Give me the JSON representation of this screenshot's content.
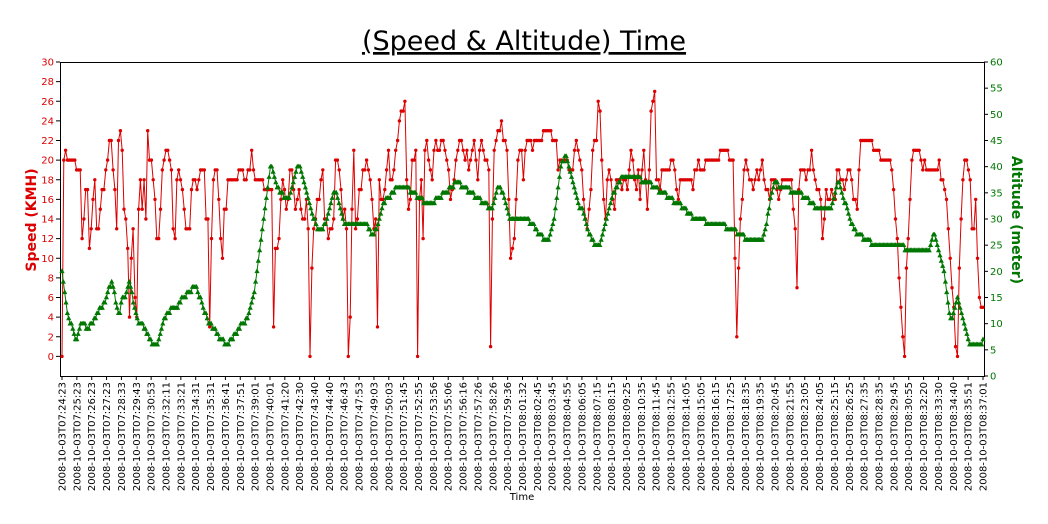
{
  "chart_data": {
    "type": "line",
    "title": "(Speed & Altitude) Time",
    "xlabel": "Time",
    "ylabel_left": "Speed (KMH)",
    "ylabel_right": "Altitude (meter)",
    "ylim_left": [
      -2,
      30
    ],
    "ylim_right": [
      0,
      60
    ],
    "yticks_left": [
      0,
      2,
      4,
      6,
      8,
      10,
      12,
      14,
      16,
      18,
      20,
      22,
      24,
      26,
      28,
      30
    ],
    "yticks_right": [
      0,
      5,
      10,
      15,
      20,
      25,
      30,
      35,
      40,
      45,
      50,
      55,
      60
    ],
    "grid": false,
    "legend": "none",
    "colors": {
      "speed": "#dd0000",
      "altitude": "#007700",
      "frame": "#000000"
    },
    "x_tick_labels": [
      "2008-10-03T07:24:23",
      "2008-10-03T07:25:23",
      "2008-10-03T07:26:23",
      "2008-10-03T07:27:23",
      "2008-10-03T07:28:33",
      "2008-10-03T07:29:43",
      "2008-10-03T07:30:53",
      "2008-10-03T07:32:11",
      "2008-10-03T07:33:21",
      "2008-10-03T07:34:31",
      "2008-10-03T07:35:31",
      "2008-10-03T07:36:41",
      "2008-10-03T07:37:51",
      "2008-10-03T07:39:01",
      "2008-10-03T07:40:01",
      "2008-10-03T07:41:20",
      "2008-10-03T07:42:30",
      "2008-10-03T07:43:40",
      "2008-10-03T07:44:40",
      "2008-10-03T07:46:43",
      "2008-10-03T07:47:53",
      "2008-10-03T07:49:03",
      "2008-10-03T07:50:03",
      "2008-10-03T07:51:45",
      "2008-10-03T07:52:55",
      "2008-10-03T07:53:56",
      "2008-10-03T07:55:06",
      "2008-10-03T07:56:16",
      "2008-10-03T07:57:26",
      "2008-10-03T07:58:26",
      "2008-10-03T07:59:36",
      "2008-10-03T08:01:32",
      "2008-10-03T08:02:45",
      "2008-10-03T08:03:45",
      "2008-10-03T08:04:55",
      "2008-10-03T08:06:05",
      "2008-10-03T08:07:15",
      "2008-10-03T08:08:15",
      "2008-10-03T08:09:25",
      "2008-10-03T08:10:35",
      "2008-10-03T08:11:45",
      "2008-10-03T08:12:55",
      "2008-10-03T08:14:05",
      "2008-10-03T08:15:05",
      "2008-10-03T08:16:15",
      "2008-10-03T08:17:25",
      "2008-10-03T08:18:35",
      "2008-10-03T08:19:35",
      "2008-10-03T08:20:45",
      "2008-10-03T08:21:55",
      "2008-10-03T08:23:05",
      "2008-10-03T08:24:05",
      "2008-10-03T08:25:15",
      "2008-10-03T08:26:25",
      "2008-10-03T08:27:35",
      "2008-10-03T08:28:35",
      "2008-10-03T08:29:45",
      "2008-10-03T08:30:55",
      "2008-10-03T08:32:20",
      "2008-10-03T08:33:30",
      "2008-10-03T08:34:40",
      "2008-10-03T08:35:51",
      "2008-10-03T08:37:01"
    ],
    "series": [
      {
        "axis": "left",
        "marker": "dot",
        "values": [
          0,
          20,
          21,
          20,
          20,
          20,
          20,
          20,
          19,
          19,
          19,
          12,
          14,
          17,
          17,
          11,
          13,
          16,
          18,
          13,
          13,
          15,
          17,
          17,
          19,
          20,
          22,
          22,
          19,
          17,
          13,
          22,
          23,
          21,
          15,
          14,
          11,
          4,
          10,
          13,
          6,
          4,
          15,
          18,
          15,
          18,
          14,
          23,
          20,
          20,
          18,
          16,
          12,
          12,
          15,
          19,
          20,
          21,
          21,
          20,
          19,
          13,
          12,
          18,
          19,
          18,
          17,
          15,
          13,
          13,
          13,
          17,
          18,
          18,
          17,
          18,
          19,
          19,
          19,
          14,
          14,
          3,
          12,
          18,
          19,
          19,
          16,
          12,
          10,
          15,
          15,
          18,
          18,
          18,
          18,
          18,
          18,
          19,
          19,
          19,
          18,
          18,
          19,
          19,
          21,
          19,
          18,
          18,
          18,
          18,
          18,
          17,
          17,
          17,
          17,
          17,
          3,
          11,
          11,
          12,
          16,
          18,
          17,
          15,
          16,
          19,
          19,
          17,
          15,
          16,
          17,
          15,
          14,
          14,
          16,
          13,
          0,
          9,
          13,
          14,
          16,
          16,
          18,
          19,
          14,
          14,
          12,
          13,
          13,
          14,
          20,
          20,
          19,
          17,
          14,
          15,
          13,
          0,
          4,
          15,
          21,
          13,
          14,
          17,
          17,
          19,
          19,
          20,
          19,
          18,
          16,
          13,
          14,
          3,
          18,
          16,
          16,
          17,
          19,
          21,
          18,
          18,
          19,
          21,
          22,
          24,
          25,
          25,
          26,
          18,
          15,
          16,
          20,
          20,
          21,
          0,
          16,
          18,
          12,
          21,
          22,
          20,
          19,
          18,
          21,
          22,
          21,
          21,
          22,
          22,
          21,
          20,
          19,
          16,
          17,
          18,
          20,
          21,
          22,
          22,
          21,
          20,
          21,
          19,
          20,
          21,
          22,
          20,
          18,
          21,
          22,
          21,
          20,
          20,
          19,
          1,
          14,
          21,
          22,
          23,
          23,
          24,
          22,
          22,
          21,
          16,
          10,
          11,
          12,
          16,
          20,
          21,
          21,
          18,
          21,
          22,
          22,
          22,
          21,
          22,
          22,
          22,
          22,
          22,
          23,
          23,
          23,
          23,
          23,
          22,
          22,
          22,
          19,
          20,
          20,
          20,
          20,
          20,
          19,
          19,
          19,
          21,
          22,
          21,
          20,
          19,
          16,
          14,
          13,
          15,
          17,
          21,
          22,
          22,
          26,
          25,
          20,
          16,
          14,
          18,
          19,
          18,
          16,
          15,
          18,
          18,
          18,
          17,
          18,
          18,
          17,
          19,
          21,
          20,
          18,
          17,
          19,
          16,
          19,
          21,
          18,
          15,
          19,
          25,
          26,
          27,
          18,
          18,
          17,
          19,
          19,
          19,
          19,
          19,
          20,
          20,
          19,
          17,
          16,
          18,
          18,
          18,
          18,
          18,
          18,
          18,
          17,
          19,
          19,
          20,
          19,
          19,
          19,
          20,
          20,
          20,
          20,
          20,
          20,
          20,
          20,
          21,
          21,
          21,
          21,
          21,
          20,
          20,
          20,
          10,
          2,
          9,
          14,
          16,
          19,
          20,
          19,
          18,
          18,
          17,
          18,
          19,
          18,
          19,
          20,
          18,
          17,
          17,
          16,
          18,
          18,
          18,
          17,
          16,
          17,
          18,
          18,
          18,
          18,
          18,
          18,
          15,
          13,
          7,
          17,
          19,
          19,
          19,
          18,
          19,
          19,
          21,
          19,
          18,
          17,
          17,
          16,
          12,
          14,
          17,
          16,
          16,
          17,
          16,
          16,
          19,
          19,
          18,
          18,
          17,
          18,
          19,
          19,
          18,
          16,
          16,
          15,
          19,
          22,
          22,
          22,
          22,
          22,
          22,
          22,
          21,
          21,
          21,
          21,
          20,
          20,
          20,
          20,
          20,
          20,
          19,
          17,
          14,
          12,
          8,
          5,
          2,
          0,
          9,
          12,
          16,
          20,
          21,
          21,
          21,
          21,
          20,
          19,
          20,
          19,
          19,
          19,
          19,
          19,
          19,
          19,
          20,
          18,
          18,
          17,
          16,
          13,
          10,
          7,
          5,
          1,
          0,
          9,
          14,
          18,
          20,
          20,
          19,
          18,
          13,
          13,
          16,
          10,
          6,
          5,
          5
        ]
      },
      {
        "axis": "right",
        "marker": "triangle",
        "values": [
          20,
          18,
          16,
          14,
          12,
          11,
          10,
          10,
          9,
          8,
          7,
          7,
          8,
          9,
          10,
          10,
          10,
          10,
          9,
          9,
          9,
          10,
          10,
          10,
          11,
          11,
          12,
          12,
          13,
          13,
          13,
          14,
          14,
          15,
          16,
          17,
          17,
          18,
          17,
          16,
          14,
          13,
          12,
          12,
          14,
          15,
          15,
          15,
          16,
          17,
          18,
          17,
          16,
          14,
          13,
          12,
          11,
          10,
          10,
          10,
          10,
          9,
          9,
          8,
          8,
          7,
          7,
          6,
          6,
          6,
          6,
          6,
          7,
          8,
          9,
          10,
          11,
          11,
          12,
          12,
          12,
          13,
          13,
          13,
          13,
          13,
          13,
          14,
          14,
          15,
          15,
          15,
          15,
          16,
          16,
          16,
          16,
          17,
          17,
          17,
          17,
          16,
          15,
          15,
          14,
          13,
          12,
          12,
          11,
          10,
          10,
          10,
          9,
          9,
          9,
          8,
          8,
          7,
          7,
          7,
          7,
          6,
          6,
          6,
          6,
          7,
          7,
          7,
          8,
          8,
          8,
          9,
          9,
          10,
          10,
          10,
          10,
          11,
          11,
          12,
          13,
          14,
          15,
          16,
          18,
          20,
          22,
          24,
          26,
          28,
          30,
          32,
          34,
          36,
          38,
          40,
          40,
          39,
          38,
          37,
          36,
          36,
          35,
          35,
          35,
          34,
          34,
          34,
          34,
          34,
          35,
          36,
          37,
          38,
          39,
          40,
          40,
          40,
          39,
          38,
          37,
          36,
          35,
          34,
          33,
          32,
          31,
          30,
          30,
          29,
          28,
          28,
          28,
          28,
          28,
          29,
          29,
          30,
          31,
          32,
          33,
          34,
          35,
          35,
          35,
          34,
          33,
          32,
          31,
          30,
          29,
          29,
          29,
          29,
          29,
          29,
          29,
          29,
          29,
          29,
          29,
          29,
          29,
          29,
          29,
          29,
          29,
          29,
          28,
          28,
          27,
          27,
          27,
          28,
          28,
          29,
          30,
          31,
          32,
          33,
          33,
          34,
          34,
          34,
          34,
          35,
          35,
          35,
          36,
          36,
          36,
          36,
          36,
          36,
          36,
          36,
          36,
          36,
          36,
          35,
          35,
          35,
          35,
          35,
          34,
          34,
          34,
          34,
          34,
          33,
          33,
          33,
          33,
          33,
          33,
          33,
          33,
          33,
          34,
          34,
          34,
          34,
          34,
          35,
          35,
          35,
          35,
          35,
          36,
          36,
          36,
          36,
          37,
          37,
          37,
          37,
          37,
          36,
          36,
          36,
          36,
          36,
          35,
          35,
          35,
          35,
          35,
          34,
          34,
          34,
          34,
          34,
          33,
          33,
          33,
          33,
          33,
          32,
          32,
          32,
          32,
          33,
          34,
          35,
          36,
          36,
          36,
          35,
          35,
          34,
          33,
          32,
          31,
          30,
          30,
          30,
          30,
          30,
          30,
          30,
          30,
          30,
          30,
          30,
          30,
          30,
          30,
          30,
          29,
          29,
          29,
          29,
          28,
          28,
          27,
          27,
          27,
          27,
          26,
          26,
          26,
          26,
          26,
          27,
          28,
          29,
          30,
          32,
          34,
          36,
          38,
          40,
          41,
          41,
          42,
          42,
          41,
          40,
          39,
          38,
          37,
          36,
          35,
          34,
          33,
          32,
          32,
          32,
          31,
          30,
          29,
          28,
          27,
          27,
          26,
          26,
          25,
          25,
          25,
          25,
          25,
          26,
          27,
          28,
          29,
          30,
          31,
          32,
          33,
          34,
          35,
          35,
          36,
          36,
          37,
          37,
          38,
          38,
          38,
          38,
          38,
          38,
          38,
          38,
          38,
          38,
          38,
          38,
          38,
          38,
          38,
          37,
          37,
          37,
          37,
          37,
          37,
          37,
          37,
          36,
          36,
          36,
          36,
          36,
          35,
          35,
          35,
          35,
          35,
          35,
          34,
          34,
          34,
          34,
          34,
          33,
          33,
          33,
          33,
          33,
          33,
          32,
          32,
          32,
          32,
          31,
          31,
          31,
          31,
          30,
          30,
          30,
          30,
          30,
          30,
          30,
          30,
          30,
          30,
          29,
          29,
          29,
          29,
          29,
          29,
          29,
          29,
          29,
          29,
          29,
          29,
          29,
          29,
          29,
          28,
          28,
          28,
          28,
          28,
          28,
          28,
          28,
          27,
          27,
          27,
          27,
          27,
          27,
          26,
          26,
          26,
          26,
          26,
          26,
          26,
          26,
          26,
          26,
          26,
          26,
          26,
          26,
          27,
          28,
          29,
          31,
          32,
          34,
          35,
          36,
          37,
          37,
          37,
          36,
          36,
          36,
          36,
          36,
          36,
          36,
          36,
          36,
          35,
          35,
          35,
          35,
          35,
          35,
          35,
          35,
          35,
          34,
          34,
          34,
          34,
          34,
          33,
          33,
          33,
          33,
          32,
          32,
          32,
          32,
          32,
          32,
          32,
          32,
          32,
          32,
          32,
          32,
          32,
          33,
          34,
          35,
          36,
          37,
          37,
          36,
          35,
          34,
          33,
          33,
          32,
          31,
          30,
          29,
          29,
          28,
          28,
          27,
          27,
          27,
          27,
          27,
          26,
          26,
          26,
          26,
          26,
          26,
          25,
          25,
          25,
          25,
          25,
          25,
          25,
          25,
          25,
          25,
          25,
          25,
          25,
          25,
          25,
          25,
          25,
          25,
          25,
          25,
          25,
          25,
          25,
          25,
          25,
          24,
          24,
          24,
          24,
          24,
          24,
          24,
          24,
          24,
          24,
          24,
          24,
          24,
          24,
          24,
          24,
          24,
          24,
          24,
          25,
          26,
          27,
          27,
          26,
          25,
          24,
          23,
          22,
          21,
          20,
          18,
          16,
          14,
          12,
          11,
          11,
          12,
          13,
          14,
          15,
          14,
          13,
          12,
          11,
          10,
          9,
          8,
          7,
          6,
          6,
          6,
          6,
          6,
          6,
          6,
          6,
          6,
          6,
          7
        ]
      }
    ]
  }
}
